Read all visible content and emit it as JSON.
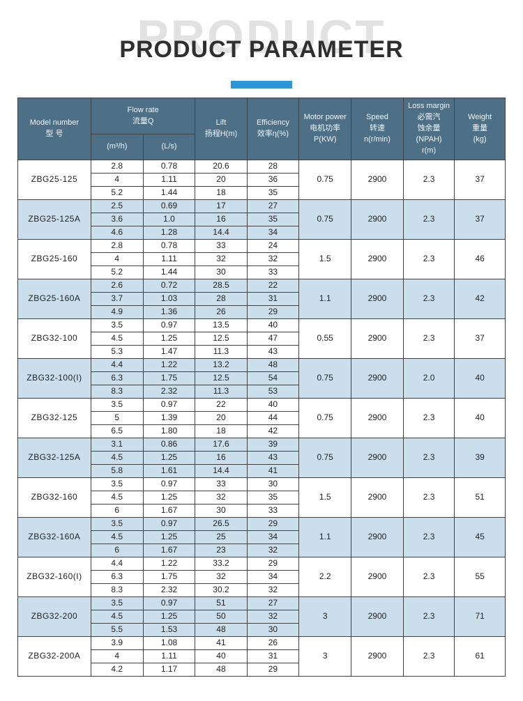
{
  "page": {
    "watermark": "PRODUCT",
    "title": "PRODUCT PARAMETER"
  },
  "colors": {
    "header_bg": "#4d7086",
    "band_bg": "#cbdeeb",
    "accent_bar": "#2e96d4",
    "border": "#404040"
  },
  "table": {
    "headers": {
      "model": "Model number\n型 号",
      "flow": "Flow rate\n流量Q",
      "flow_sub_m3h": "(m³/h)",
      "flow_sub_ls": "(L/s)",
      "lift": "Lift\n扬程H(m)",
      "efficiency": "Efficiency\n效率η(%)",
      "motor_power": "Motor power\n电机功率\nP(KW)",
      "speed": "Speed\n转速\nn(r/min)",
      "loss_margin": "Loss margin\n必需汽\n蚀余量\n(NPAH)\nr(m)",
      "weight": "Weight\n重量\n(kg)"
    },
    "groups": [
      {
        "model": "ZBG25-125",
        "rows": [
          [
            "2.8",
            "0.78",
            "20.6",
            "28"
          ],
          [
            "4",
            "1.11",
            "20",
            "36"
          ],
          [
            "5.2",
            "1.44",
            "18",
            "35"
          ]
        ],
        "power": "0.75",
        "speed": "2900",
        "npsh": "2.3",
        "weight": "37"
      },
      {
        "model": "ZBG25-125A",
        "rows": [
          [
            "2.5",
            "0.69",
            "17",
            "27"
          ],
          [
            "3.6",
            "1.0",
            "16",
            "35"
          ],
          [
            "4.6",
            "1.28",
            "14.4",
            "34"
          ]
        ],
        "power": "0.75",
        "speed": "2900",
        "npsh": "2.3",
        "weight": "37"
      },
      {
        "model": "ZBG25-160",
        "rows": [
          [
            "2.8",
            "0.78",
            "33",
            "24"
          ],
          [
            "4",
            "1.11",
            "32",
            "32"
          ],
          [
            "5.2",
            "1.44",
            "30",
            "33"
          ]
        ],
        "power": "1.5",
        "speed": "2900",
        "npsh": "2.3",
        "weight": "46"
      },
      {
        "model": "ZBG25-160A",
        "rows": [
          [
            "2.6",
            "0.72",
            "28.5",
            "22"
          ],
          [
            "3.7",
            "1.03",
            "28",
            "31"
          ],
          [
            "4.9",
            "1.36",
            "26",
            "29"
          ]
        ],
        "power": "1.1",
        "speed": "2900",
        "npsh": "2.3",
        "weight": "42"
      },
      {
        "model": "ZBG32-100",
        "rows": [
          [
            "3.5",
            "0.97",
            "13.5",
            "40"
          ],
          [
            "4.5",
            "1.25",
            "12.5",
            "47"
          ],
          [
            "5.3",
            "1.47",
            "11.3",
            "43"
          ]
        ],
        "power": "0.55",
        "speed": "2900",
        "npsh": "2.3",
        "weight": "37"
      },
      {
        "model": "ZBG32-100(I)",
        "rows": [
          [
            "4.4",
            "1.22",
            "13.2",
            "48"
          ],
          [
            "6.3",
            "1.75",
            "12.5",
            "54"
          ],
          [
            "8.3",
            "2.32",
            "11.3",
            "53"
          ]
        ],
        "power": "0.75",
        "speed": "2900",
        "npsh": "2.0",
        "weight": "40"
      },
      {
        "model": "ZBG32-125",
        "rows": [
          [
            "3.5",
            "0.97",
            "22",
            "40"
          ],
          [
            "5",
            "1.39",
            "20",
            "44"
          ],
          [
            "6.5",
            "1.80",
            "18",
            "42"
          ]
        ],
        "power": "0.75",
        "speed": "2900",
        "npsh": "2.3",
        "weight": "40"
      },
      {
        "model": "ZBG32-125A",
        "rows": [
          [
            "3.1",
            "0.86",
            "17.6",
            "39"
          ],
          [
            "4.5",
            "1.25",
            "16",
            "43"
          ],
          [
            "5.8",
            "1.61",
            "14.4",
            "41"
          ]
        ],
        "power": "0.75",
        "speed": "2900",
        "npsh": "2.3",
        "weight": "39"
      },
      {
        "model": "ZBG32-160",
        "rows": [
          [
            "3.5",
            "0.97",
            "33",
            "30"
          ],
          [
            "4.5",
            "1.25",
            "32",
            "35"
          ],
          [
            "6",
            "1.67",
            "30",
            "33"
          ]
        ],
        "power": "1.5",
        "speed": "2900",
        "npsh": "2.3",
        "weight": "51"
      },
      {
        "model": "ZBG32-160A",
        "rows": [
          [
            "3.5",
            "0.97",
            "26.5",
            "29"
          ],
          [
            "4.5",
            "1.25",
            "25",
            "34"
          ],
          [
            "6",
            "1.67",
            "23",
            "32"
          ]
        ],
        "power": "1.1",
        "speed": "2900",
        "npsh": "2.3",
        "weight": "45"
      },
      {
        "model": "ZBG32-160(I)",
        "rows": [
          [
            "4.4",
            "1.22",
            "33.2",
            "29"
          ],
          [
            "6.3",
            "1.75",
            "32",
            "34"
          ],
          [
            "8.3",
            "2.32",
            "30.2",
            "32"
          ]
        ],
        "power": "2.2",
        "speed": "2900",
        "npsh": "2.3",
        "weight": "55"
      },
      {
        "model": "ZBG32-200",
        "rows": [
          [
            "3.5",
            "0.97",
            "51",
            "27"
          ],
          [
            "4.5",
            "1.25",
            "50",
            "32"
          ],
          [
            "5.5",
            "1.53",
            "48",
            "30"
          ]
        ],
        "power": "3",
        "speed": "2900",
        "npsh": "2.3",
        "weight": "71"
      },
      {
        "model": "ZBG32-200A",
        "rows": [
          [
            "3.9",
            "1.08",
            "41",
            "26"
          ],
          [
            "4",
            "1.11",
            "40",
            "31"
          ],
          [
            "4.2",
            "1.17",
            "48",
            "29"
          ]
        ],
        "power": "3",
        "speed": "2900",
        "npsh": "2.3",
        "weight": "61"
      }
    ]
  }
}
